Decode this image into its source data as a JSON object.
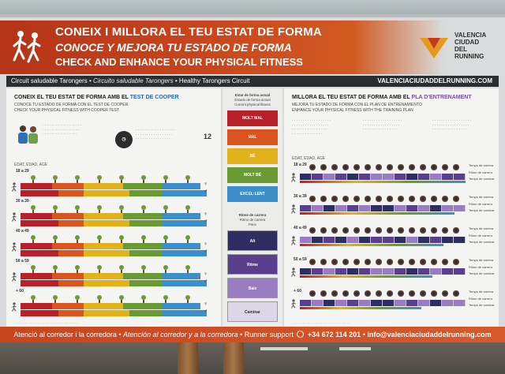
{
  "header": {
    "title_ca": "CONEIX I MILLORA EL TEU ESTAT DE FORMA",
    "title_es": "CONOCE Y MEJORA TU ESTADO DE FORMA",
    "title_en": "CHECK AND ENHANCE YOUR PHYSICAL FITNESS",
    "logo_text": "VALENCIA CIUDAD DEL RUNNING"
  },
  "strip": {
    "left_ca": "Circuit saludable Tarongers",
    "left_es": "Circuito saludable Tarongers",
    "left_en": "Healthy Tarongers Circuit",
    "website": "VALENCIACIUDADDELRUNNING.COM"
  },
  "left_panel": {
    "title_prefix": "CONEIX EL TEU ESTAT DE FORMA AMB EL",
    "title_accent": "TEST DE COOPER",
    "sub_es": "CONOCE TU ESTADO DE FORMA CON EL TEST DE COOPER",
    "sub_en": "CHECK YOUR PHYSICAL FITNESS WITH COOPER TEST",
    "minutes": "12",
    "age_header": "EDAT, EDAD, AGE",
    "age_groups": [
      "18 a 29",
      "30 a 39",
      "40 a 49",
      "50 a 59",
      "+ 60"
    ]
  },
  "mid_panel": {
    "header": "Estat de forma actual",
    "header_es": "Estado de forma actual",
    "header_en": "Current physical fitness",
    "levels": [
      {
        "label": "MOLT MAL",
        "color": "#b8202a"
      },
      {
        "label": "MAL",
        "color": "#d9541f"
      },
      {
        "label": "BÉ",
        "color": "#e2b21c"
      },
      {
        "label": "MOLT BÉ",
        "color": "#6a9a32"
      },
      {
        "label": "EXCEL·LENT",
        "color": "#3d8fc9"
      }
    ],
    "pace_header": "Ritme de carrera",
    "pace_header_es": "Ritmo de carrera",
    "pace_header_en": "Pace",
    "paces": [
      {
        "label": "Alt",
        "color": "#2e2e63"
      },
      {
        "label": "Ritme",
        "color": "#5a3f8e"
      },
      {
        "label": "Baix",
        "color": "#9a7cc2"
      },
      {
        "label": "Caminar",
        "color": "#ddd6e8"
      }
    ]
  },
  "right_panel": {
    "title_prefix": "MILLORA EL TEU ESTAT DE FORMA AMB EL",
    "title_accent": "PLA D'ENTRENAMENT",
    "sub_es": "MEJORA TU ESTADO DE FORMA CON EL PLAN DE ENTRENAMIENTO",
    "sub_en": "ENHANCE YOUR PHYSICAL FITNESS WITH THE TRAINING PLAN",
    "age_header": "EDAT, EDAD, AGE",
    "age_groups": [
      "18 a 29",
      "30 a 39",
      "40 a 49",
      "50 a 59",
      "+ 60"
    ],
    "row_labels": [
      "Temps de carrera",
      "Ritme de carrera",
      "Temps de caminar"
    ]
  },
  "bottom": {
    "ca": "Atenció al corredor i la corredora",
    "es": "Atención al corredor y a la corredora",
    "en": "Runner support",
    "phone": "+34 672 114 201",
    "email": "info@valenciaciudaddelrunning.com"
  }
}
